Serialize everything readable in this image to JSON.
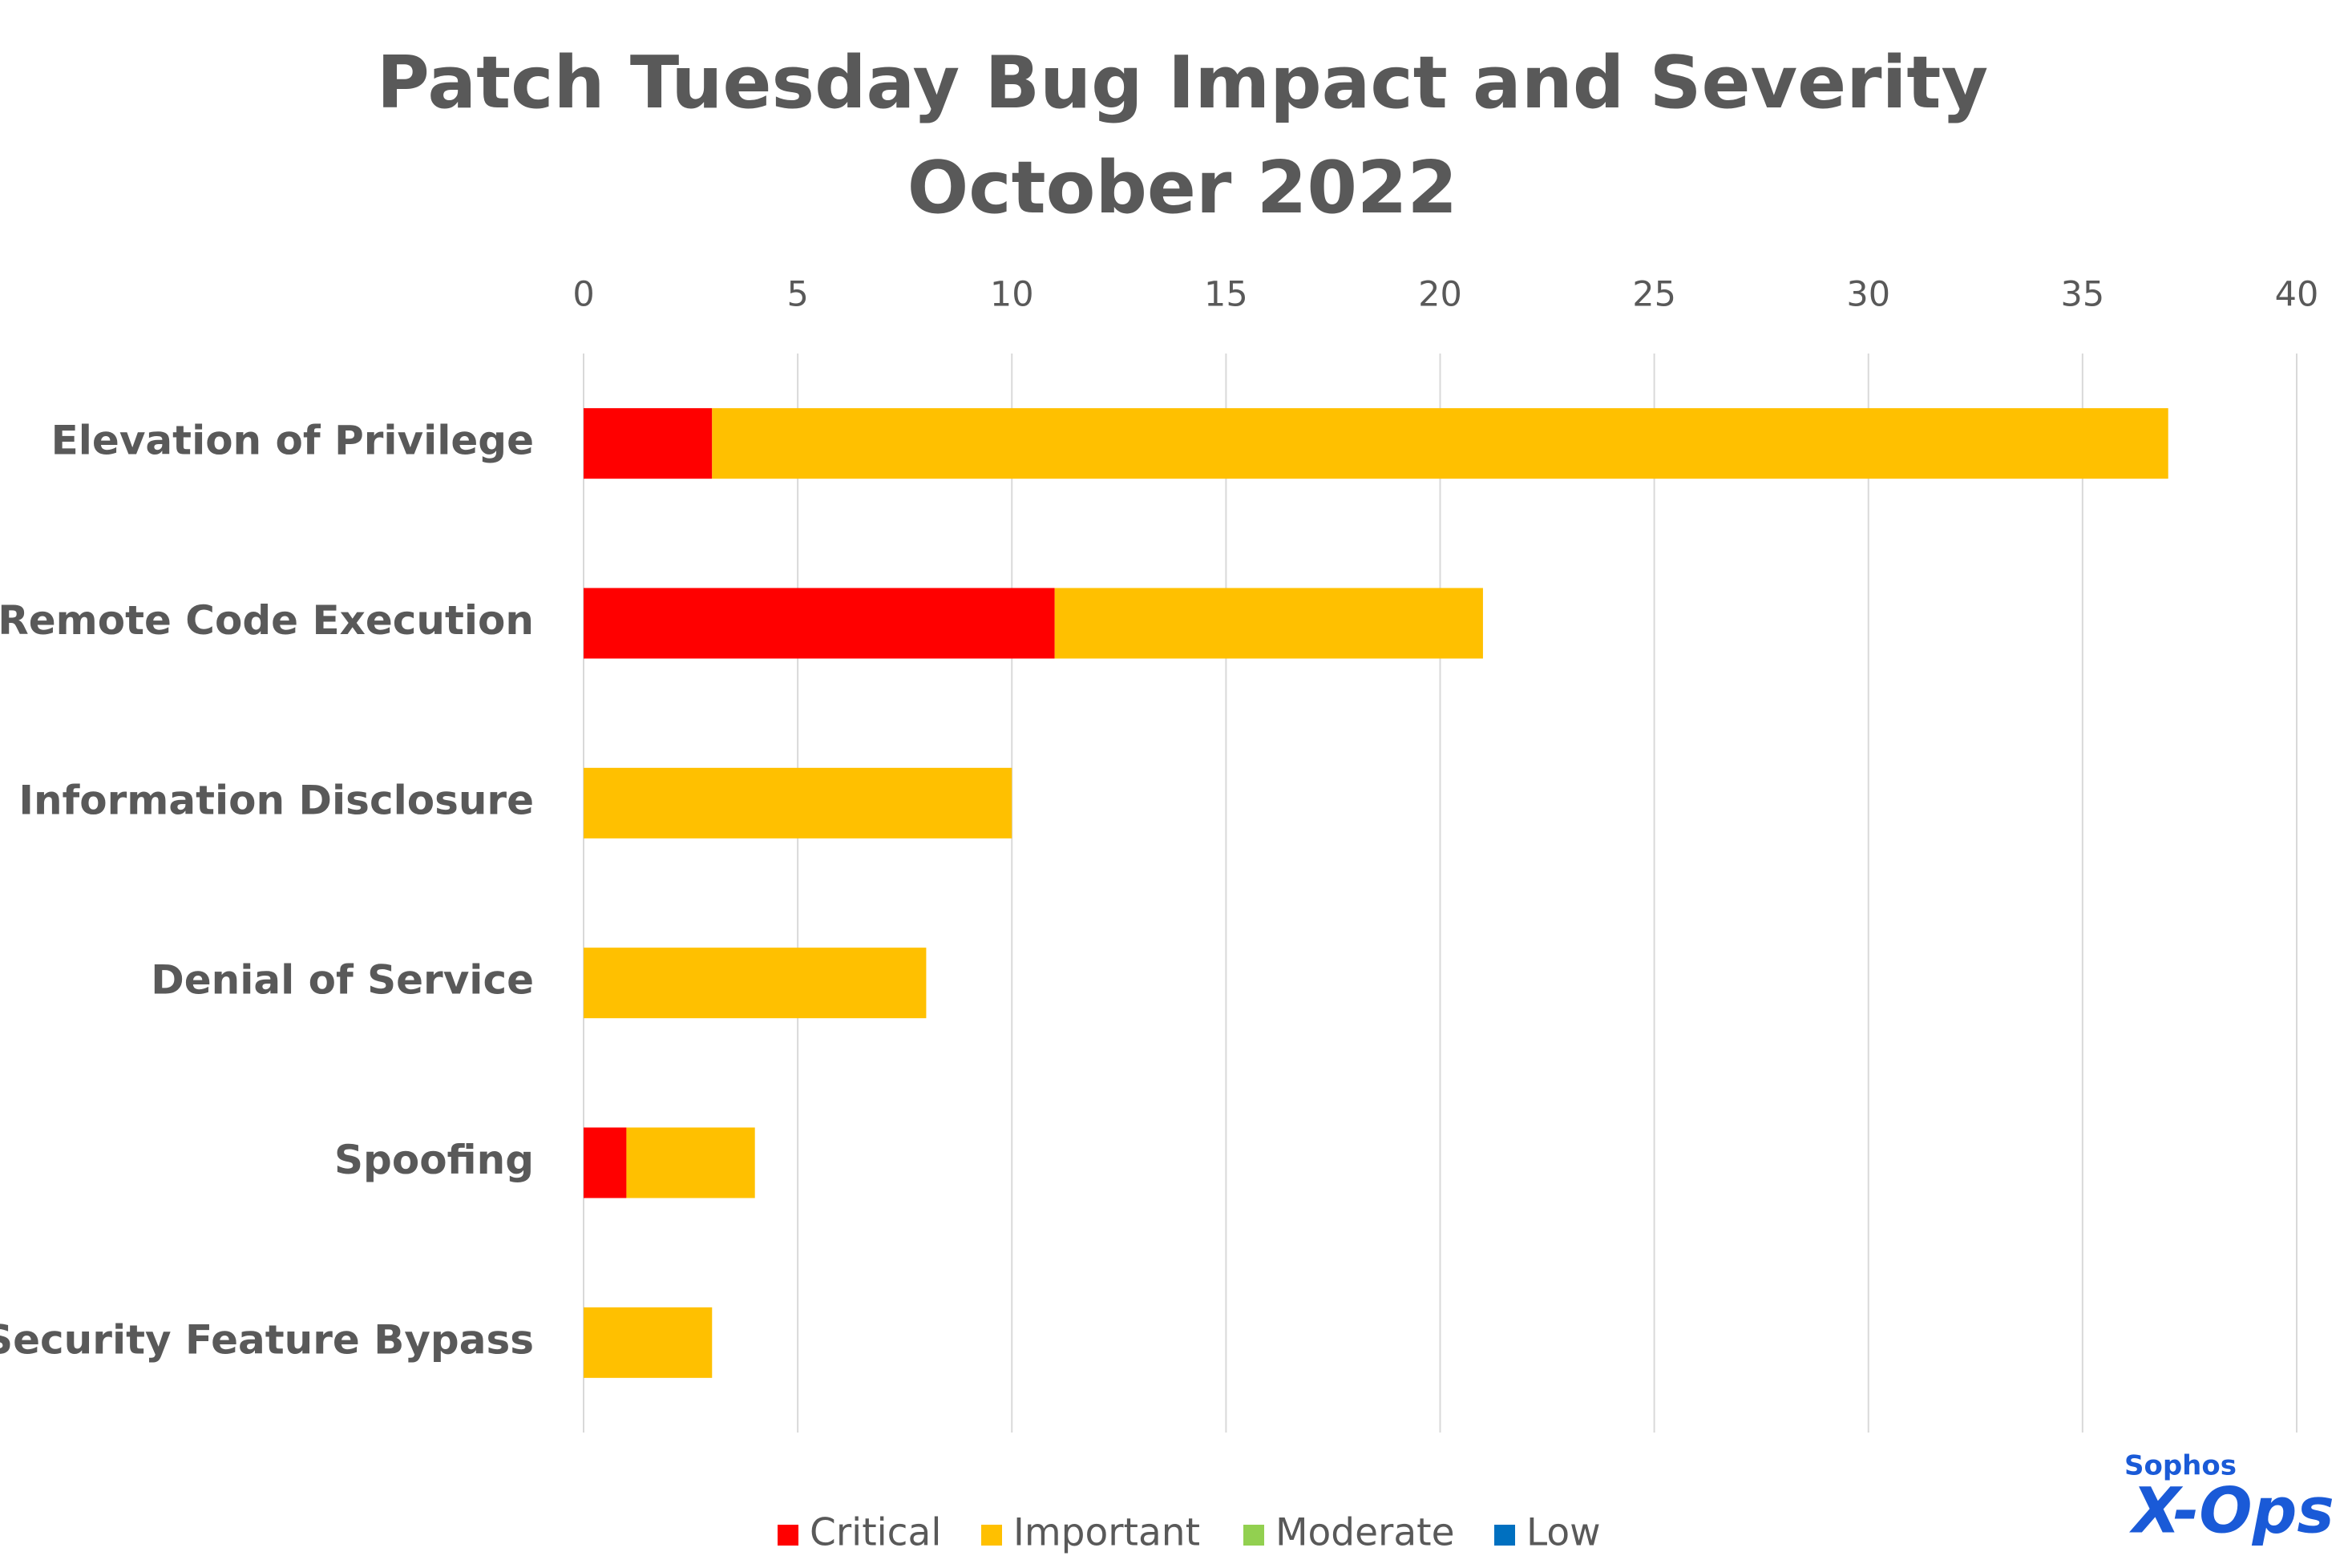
{
  "chart_data": {
    "type": "bar",
    "orientation": "horizontal",
    "stacked": true,
    "title": "Patch Tuesday Bug Impact and Severity",
    "subtitle": "October 2022",
    "categories": [
      "Elevation of Privilege",
      "Remote Code Execution",
      "Information Disclosure",
      "Denial of Service",
      "Spoofing",
      "Security Feature Bypass"
    ],
    "series": [
      {
        "name": "Critical",
        "color": "#ff0000",
        "values": [
          3,
          11,
          0,
          0,
          1,
          0
        ]
      },
      {
        "name": "Important",
        "color": "#ffc000",
        "values": [
          34,
          10,
          10,
          8,
          3,
          3
        ]
      },
      {
        "name": "Moderate",
        "color": "#92d050",
        "values": [
          0,
          0,
          0,
          0,
          0,
          0
        ]
      },
      {
        "name": "Low",
        "color": "#0070c0",
        "values": [
          0,
          0,
          0,
          0,
          0,
          0
        ]
      }
    ],
    "xlim": [
      0,
      40
    ],
    "xticks": [
      0,
      5,
      10,
      15,
      20,
      25,
      30,
      35,
      40
    ],
    "grid": true,
    "legend": "bottom"
  },
  "logo": {
    "brand": "Sophos",
    "product": "X-Ops"
  }
}
